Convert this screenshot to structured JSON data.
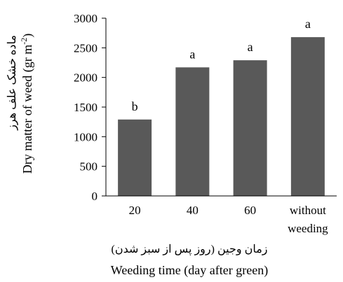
{
  "chart_data": {
    "type": "bar",
    "categories": [
      [
        "20"
      ],
      [
        "40"
      ],
      [
        "60"
      ],
      [
        "without",
        "weeding"
      ]
    ],
    "values": [
      1290,
      2170,
      2290,
      2680
    ],
    "data_labels": [
      "b",
      "a",
      "a",
      "a"
    ],
    "yticks": [
      0,
      500,
      1000,
      1500,
      2000,
      2500,
      3000
    ],
    "ylim": [
      0,
      3000
    ],
    "ylabel": "Dry matter of weed (gr m-2)",
    "ylabel_base": "Dry matter of weed (gr m",
    "ylabel_sup": "-2",
    "ylabel_close": ")",
    "ylabel_fa": "ماده خشک علف هرز",
    "xlabel": "Weeding time (day after green)",
    "xlabel_fa": "زمان وجین (روز پس از سبز شدن)",
    "grid": false,
    "bar_color": "#595959"
  }
}
